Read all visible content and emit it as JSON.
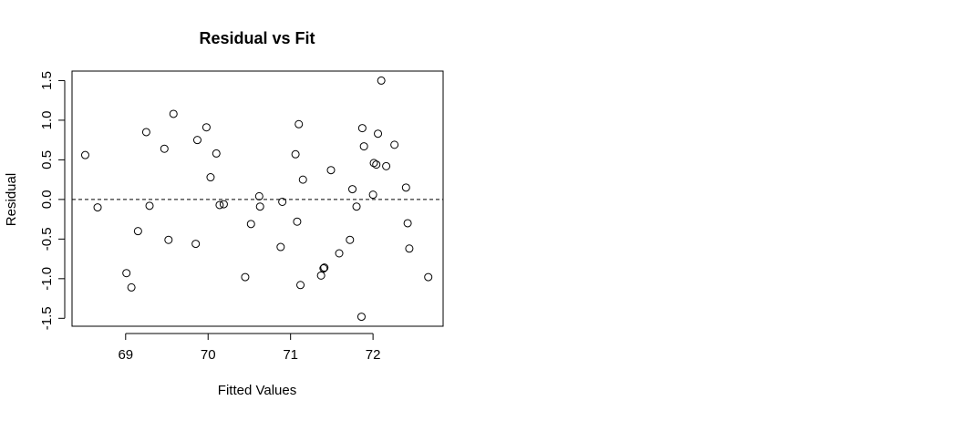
{
  "chart_data": {
    "type": "scatter",
    "title": "Residual vs Fit",
    "xlabel": "Fitted Values",
    "ylabel": "Residual",
    "xlim": [
      68.35,
      72.85
    ],
    "ylim": [
      -1.6,
      1.62
    ],
    "xticks": [
      69,
      70,
      71,
      72
    ],
    "xtick_labels": [
      "69",
      "70",
      "71",
      "72"
    ],
    "yticks": [
      -1.5,
      -1.0,
      -0.5,
      0.0,
      0.5,
      1.0,
      1.5
    ],
    "ytick_labels": [
      "-1.5",
      "-1.0",
      "-0.5",
      "0.0",
      "0.5",
      "1.0",
      "1.5"
    ],
    "reference_line": {
      "y": 0,
      "style": "dashed"
    },
    "grid": false,
    "marker": "open-circle",
    "points": [
      {
        "x": 68.51,
        "y": 0.56
      },
      {
        "x": 68.66,
        "y": -0.1
      },
      {
        "x": 69.01,
        "y": -0.93
      },
      {
        "x": 69.07,
        "y": -1.11
      },
      {
        "x": 69.15,
        "y": -0.4
      },
      {
        "x": 69.25,
        "y": 0.85
      },
      {
        "x": 69.29,
        "y": -0.08
      },
      {
        "x": 69.47,
        "y": 0.64
      },
      {
        "x": 69.52,
        "y": -0.51
      },
      {
        "x": 69.58,
        "y": 1.08
      },
      {
        "x": 69.85,
        "y": -0.56
      },
      {
        "x": 69.87,
        "y": 0.75
      },
      {
        "x": 69.98,
        "y": 0.91
      },
      {
        "x": 70.03,
        "y": 0.28
      },
      {
        "x": 70.1,
        "y": 0.58
      },
      {
        "x": 70.14,
        "y": -0.07
      },
      {
        "x": 70.19,
        "y": -0.06
      },
      {
        "x": 70.45,
        "y": -0.98
      },
      {
        "x": 70.52,
        "y": -0.31
      },
      {
        "x": 70.62,
        "y": 0.04
      },
      {
        "x": 70.63,
        "y": -0.09
      },
      {
        "x": 70.88,
        "y": -0.6
      },
      {
        "x": 70.9,
        "y": -0.03
      },
      {
        "x": 71.06,
        "y": 0.57
      },
      {
        "x": 71.08,
        "y": -0.28
      },
      {
        "x": 71.1,
        "y": 0.95
      },
      {
        "x": 71.12,
        "y": -1.08
      },
      {
        "x": 71.15,
        "y": 0.25
      },
      {
        "x": 71.37,
        "y": -0.96
      },
      {
        "x": 71.4,
        "y": -0.87
      },
      {
        "x": 71.41,
        "y": -0.86
      },
      {
        "x": 71.49,
        "y": 0.37
      },
      {
        "x": 71.59,
        "y": -0.68
      },
      {
        "x": 71.72,
        "y": -0.51
      },
      {
        "x": 71.75,
        "y": 0.13
      },
      {
        "x": 71.8,
        "y": -0.09
      },
      {
        "x": 71.86,
        "y": -1.48
      },
      {
        "x": 71.87,
        "y": 0.9
      },
      {
        "x": 71.89,
        "y": 0.67
      },
      {
        "x": 72.0,
        "y": 0.06
      },
      {
        "x": 72.01,
        "y": 0.46
      },
      {
        "x": 72.04,
        "y": 0.44
      },
      {
        "x": 72.06,
        "y": 0.83
      },
      {
        "x": 72.1,
        "y": 1.5
      },
      {
        "x": 72.16,
        "y": 0.42
      },
      {
        "x": 72.26,
        "y": 0.69
      },
      {
        "x": 72.4,
        "y": 0.15
      },
      {
        "x": 72.42,
        "y": -0.3
      },
      {
        "x": 72.44,
        "y": -0.62
      },
      {
        "x": 72.67,
        "y": -0.98
      }
    ]
  }
}
